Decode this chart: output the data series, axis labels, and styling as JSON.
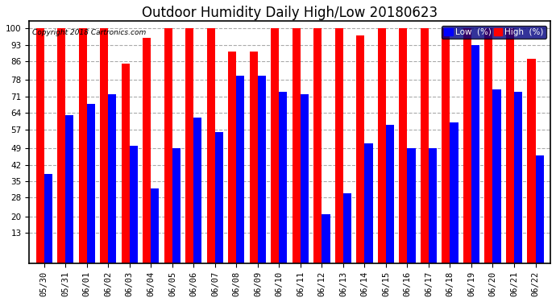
{
  "title": "Outdoor Humidity Daily High/Low 20180623",
  "copyright": "Copyright 2018 Cartronics.com",
  "categories": [
    "05/30",
    "05/31",
    "06/01",
    "06/02",
    "06/03",
    "06/04",
    "06/05",
    "06/06",
    "06/07",
    "06/08",
    "06/09",
    "06/10",
    "06/11",
    "06/12",
    "06/13",
    "06/14",
    "06/15",
    "06/16",
    "06/17",
    "06/18",
    "06/19",
    "06/20",
    "06/21",
    "06/22"
  ],
  "high": [
    100,
    100,
    100,
    100,
    85,
    96,
    100,
    100,
    100,
    90,
    90,
    100,
    100,
    100,
    100,
    97,
    100,
    100,
    100,
    100,
    100,
    100,
    100,
    87
  ],
  "low": [
    38,
    63,
    68,
    72,
    50,
    32,
    49,
    62,
    56,
    80,
    80,
    73,
    72,
    21,
    30,
    51,
    59,
    49,
    49,
    60,
    93,
    74,
    73,
    46
  ],
  "high_color": "#ff0000",
  "low_color": "#0000ff",
  "bg_color": "#ffffff",
  "grid_color": "#aaaaaa",
  "yticks": [
    13,
    20,
    28,
    35,
    42,
    49,
    57,
    64,
    71,
    78,
    86,
    93,
    100
  ],
  "ylim": [
    0,
    103
  ],
  "bar_width": 0.38,
  "title_fontsize": 12,
  "tick_fontsize": 7.5,
  "legend_label_low": "Low  (%)",
  "legend_label_high": "High  (%)"
}
